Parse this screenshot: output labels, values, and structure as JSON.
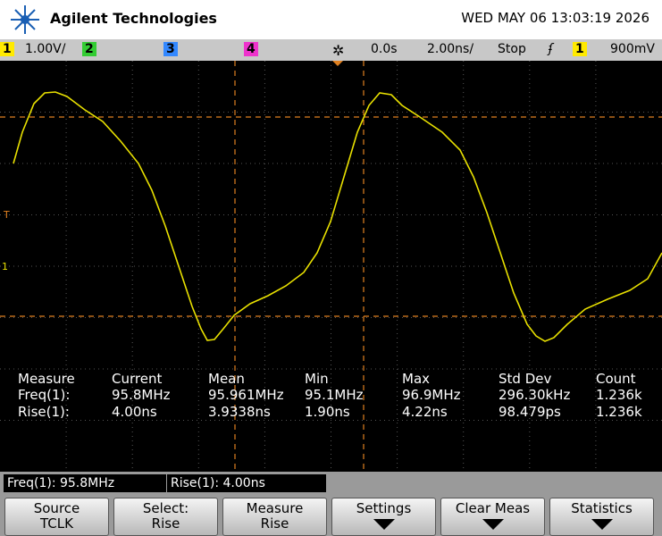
{
  "header": {
    "brand": "Agilent Technologies",
    "datetime": "WED MAY 06 13:03:19 2026"
  },
  "status_bar": {
    "ch1": "1",
    "ch1_scale": "1.00V/",
    "ch2": "2",
    "ch3": "3",
    "ch4": "4",
    "time_delay": "0.0s",
    "time_scale": "2.00ns/",
    "run_state": "Stop",
    "trigger_source": "1",
    "trigger_level": "900mV"
  },
  "screen": {
    "trigger_marker": "T",
    "channel_marker": "1"
  },
  "measure": {
    "headers": [
      "Measure",
      "Current",
      "Mean",
      "Min",
      "Max",
      "Std Dev",
      "Count"
    ],
    "rows": [
      [
        "Freq(1):",
        "95.8MHz",
        "95.961MHz",
        "95.1MHz",
        "96.9MHz",
        "296.30kHz",
        "1.236k"
      ],
      [
        "Rise(1):",
        "4.00ns",
        "3.9338ns",
        "1.90ns",
        "4.22ns",
        "98.479ps",
        "1.236k"
      ]
    ]
  },
  "readouts": [
    "Freq(1): 95.8MHz",
    "Rise(1): 4.00ns"
  ],
  "softkeys": [
    {
      "line1": "Source",
      "line2": "TCLK"
    },
    {
      "line1": "Select:",
      "line2": "Rise"
    },
    {
      "line1": "Measure",
      "line2": "Rise"
    },
    {
      "line1": "Settings"
    },
    {
      "line1": "Clear Meas"
    },
    {
      "line1": "Statistics"
    }
  ]
}
